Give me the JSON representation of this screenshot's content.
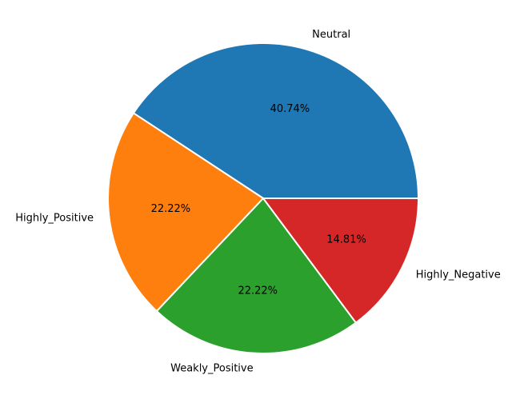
{
  "chart_data": {
    "type": "pie",
    "title": "",
    "categories": [
      "Neutral",
      "Highly_Positive",
      "Weakly_Positive",
      "Highly_Negative"
    ],
    "values": [
      40.74,
      22.22,
      22.22,
      14.81
    ],
    "percent_labels": [
      "40.74%",
      "22.22%",
      "22.22%",
      "14.81%"
    ],
    "colors": [
      "#1f77b4",
      "#ff7f0e",
      "#2ca02c",
      "#d62728"
    ],
    "edge_color": "#ffffff",
    "start_angle_deg": 0,
    "direction": "counterclockwise",
    "legend": "none"
  }
}
